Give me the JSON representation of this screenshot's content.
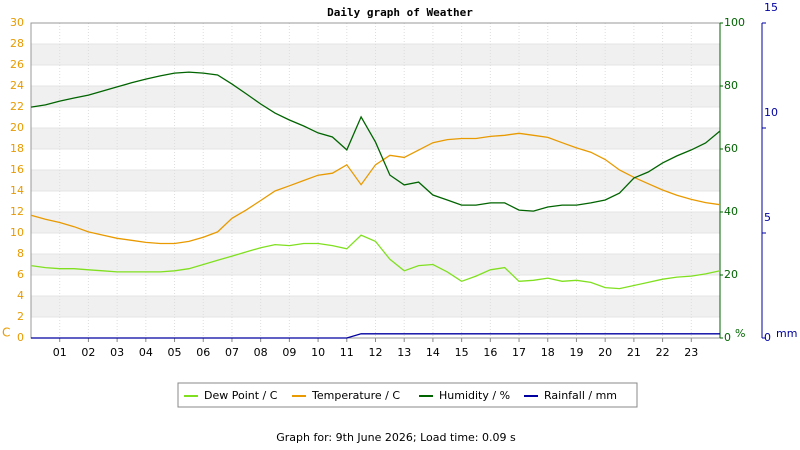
{
  "chart_data": {
    "type": "line",
    "title": "Daily graph of Weather",
    "x": [
      0,
      0.5,
      1,
      1.5,
      2,
      2.5,
      3,
      3.5,
      4,
      4.5,
      5,
      5.5,
      6,
      6.5,
      7,
      7.5,
      8,
      8.5,
      9,
      9.5,
      10,
      10.5,
      11,
      11.5,
      12,
      12.5,
      13,
      13.5,
      14,
      14.5,
      15,
      15.5,
      16,
      16.5,
      17,
      17.5,
      18,
      18.5,
      19,
      19.5,
      20,
      20.5,
      21,
      21.5,
      22,
      22.5,
      23,
      23.5,
      24
    ],
    "xlim": [
      0,
      24
    ],
    "xticks": [
      {
        "value": 1,
        "label": "01"
      },
      {
        "value": 2,
        "label": "02"
      },
      {
        "value": 3,
        "label": "03"
      },
      {
        "value": 4,
        "label": "04"
      },
      {
        "value": 5,
        "label": "05"
      },
      {
        "value": 6,
        "label": "06"
      },
      {
        "value": 7,
        "label": "07"
      },
      {
        "value": 8,
        "label": "08"
      },
      {
        "value": 9,
        "label": "09"
      },
      {
        "value": 10,
        "label": "10"
      },
      {
        "value": 11,
        "label": "11"
      },
      {
        "value": 12,
        "label": "12"
      },
      {
        "value": 13,
        "label": "13"
      },
      {
        "value": 14,
        "label": "14"
      },
      {
        "value": 15,
        "label": "15"
      },
      {
        "value": 16,
        "label": "16"
      },
      {
        "value": 17,
        "label": "17"
      },
      {
        "value": 18,
        "label": "18"
      },
      {
        "value": 19,
        "label": "19"
      },
      {
        "value": 20,
        "label": "20"
      },
      {
        "value": 21,
        "label": "21"
      },
      {
        "value": 22,
        "label": "22"
      },
      {
        "value": 23,
        "label": "23"
      }
    ],
    "ylim": [
      0,
      30
    ],
    "yticks": [
      0,
      2,
      4,
      6,
      8,
      10,
      12,
      14,
      16,
      18,
      20,
      22,
      24,
      26,
      28,
      30
    ],
    "y_unit": "C",
    "y2lim": [
      0,
      100
    ],
    "y2ticks": [
      0,
      20,
      40,
      60,
      80,
      100
    ],
    "y2_unit": "%",
    "y3lim": [
      0,
      15
    ],
    "y3ticks": [
      0,
      5,
      10,
      15
    ],
    "y3_unit": "mm",
    "series": [
      {
        "name": "Dew Point / C",
        "color": "#80e020",
        "values": [
          6.9,
          6.7,
          6.6,
          6.6,
          6.5,
          6.4,
          6.3,
          6.3,
          6.3,
          6.3,
          6.4,
          6.6,
          7.0,
          7.4,
          7.8,
          8.2,
          8.6,
          8.9,
          8.8,
          9.0,
          9.0,
          8.8,
          8.5,
          9.8,
          9.2,
          7.5,
          6.4,
          6.9,
          7.0,
          6.3,
          5.4,
          5.9,
          6.5,
          6.7,
          5.4,
          5.5,
          5.7,
          5.4,
          5.5,
          5.3,
          4.8,
          4.7,
          5.0,
          5.3,
          5.6,
          5.8,
          5.9,
          6.1,
          6.4
        ]
      },
      {
        "name": "Temperature / C",
        "color": "#e89a00",
        "values": [
          11.7,
          11.3,
          11.0,
          10.6,
          10.1,
          9.8,
          9.5,
          9.3,
          9.1,
          9.0,
          9.0,
          9.2,
          9.6,
          10.1,
          11.4,
          12.2,
          13.1,
          14.0,
          14.5,
          15.0,
          15.5,
          15.7,
          16.5,
          14.6,
          16.5,
          17.4,
          17.2,
          17.9,
          18.6,
          18.9,
          19.0,
          19.0,
          19.2,
          19.3,
          19.5,
          19.3,
          19.1,
          18.6,
          18.1,
          17.7,
          17.0,
          16.0,
          15.3,
          14.7,
          14.1,
          13.6,
          13.2,
          12.9,
          12.7
        ]
      },
      {
        "name": "Humidity / %",
        "color": "#006400",
        "axis": "y2",
        "values": [
          73.3,
          74,
          75.2,
          76.2,
          77.1,
          78.4,
          79.7,
          81,
          82.2,
          83.2,
          84.1,
          84.4,
          84.1,
          83.5,
          80.6,
          77.5,
          74.3,
          71.4,
          69.2,
          67.3,
          65.1,
          63.8,
          59.7,
          70.2,
          62.2,
          51.7,
          48.6,
          49.5,
          45.4,
          43.8,
          42.2,
          42.2,
          42.9,
          42.9,
          40.6,
          40.3,
          41.6,
          42.2,
          42.2,
          42.9,
          43.8,
          46,
          50.8,
          52.7,
          55.6,
          57.8,
          59.7,
          61.9,
          65.7
        ]
      },
      {
        "name": "Rainfall / mm",
        "color": "#0000a0",
        "axis": "y3",
        "values": [
          0,
          0,
          0,
          0,
          0,
          0,
          0,
          0,
          0,
          0,
          0,
          0,
          0,
          0,
          0,
          0,
          0,
          0,
          0,
          0,
          0,
          0,
          0,
          0.2,
          0.2,
          0.2,
          0.2,
          0.2,
          0.2,
          0.2,
          0.2,
          0.2,
          0.2,
          0.2,
          0.2,
          0.2,
          0.2,
          0.2,
          0.2,
          0.2,
          0.2,
          0.2,
          0.2,
          0.2,
          0.2,
          0.2,
          0.2,
          0.2,
          0.2
        ]
      }
    ]
  },
  "footer": "Graph for: 9th June 2026; Load time: 0.09 s"
}
